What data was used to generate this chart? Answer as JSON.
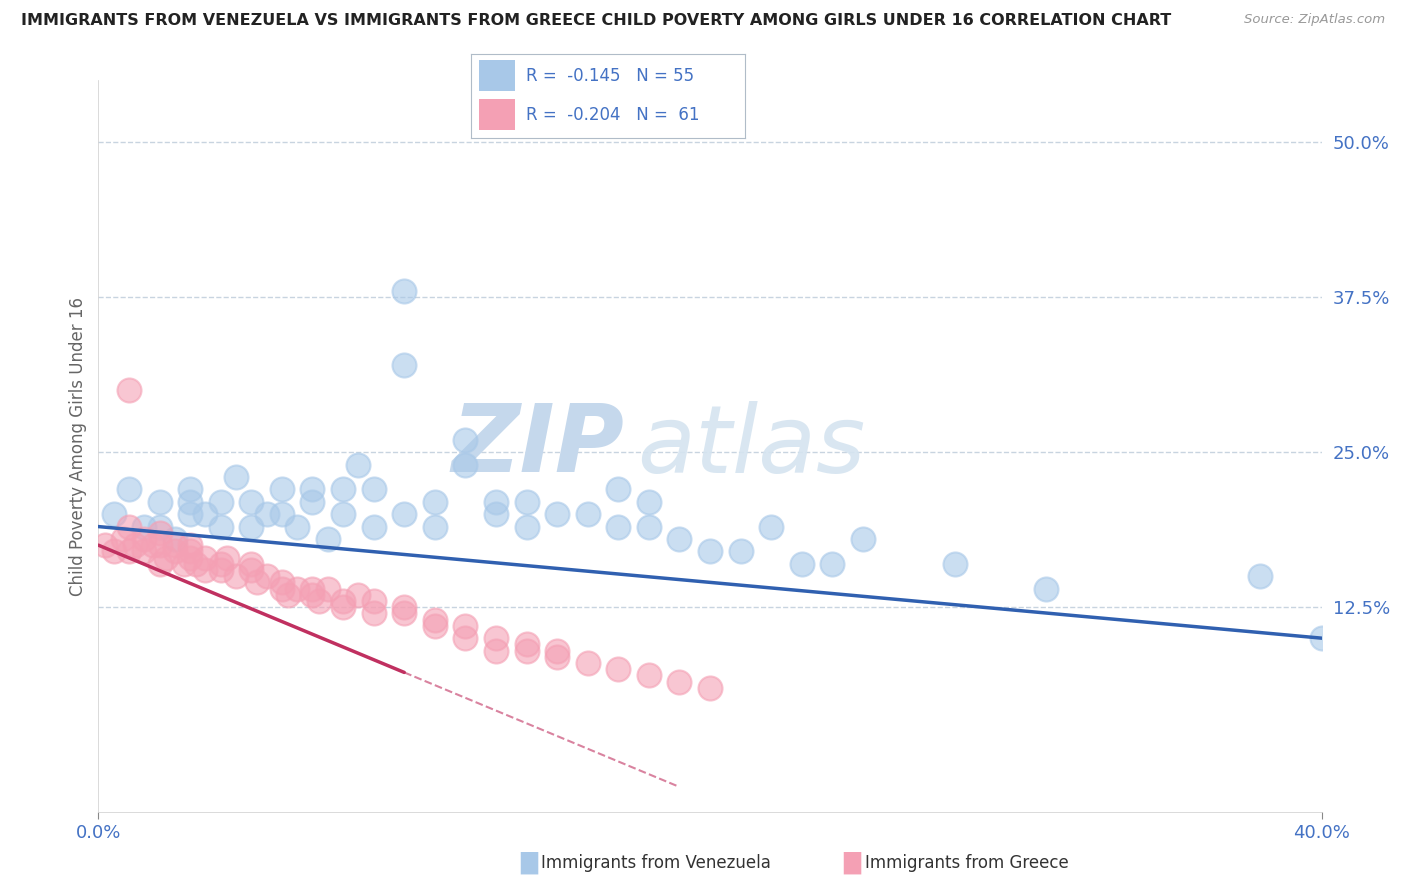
{
  "title": "IMMIGRANTS FROM VENEZUELA VS IMMIGRANTS FROM GREECE CHILD POVERTY AMONG GIRLS UNDER 16 CORRELATION CHART",
  "source": "Source: ZipAtlas.com",
  "ylabel": "Child Poverty Among Girls Under 16",
  "xlim": [
    0.0,
    0.4
  ],
  "ylim": [
    -0.04,
    0.55
  ],
  "ytick_vals": [
    0.125,
    0.25,
    0.375,
    0.5
  ],
  "ytick_labels": [
    "12.5%",
    "25.0%",
    "37.5%",
    "50.0%"
  ],
  "xtick_vals": [
    0.0,
    0.4
  ],
  "xtick_labels": [
    "0.0%",
    "40.0%"
  ],
  "r_venezuela": -0.145,
  "n_venezuela": 55,
  "r_greece": -0.204,
  "n_greece": 61,
  "color_venezuela": "#a8c8e8",
  "color_greece": "#f4a0b4",
  "trendline_venezuela": "#3060b0",
  "trendline_greece": "#c03060",
  "watermark_zip": "ZIP",
  "watermark_atlas": "atlas",
  "watermark_color": "#c8d8ec",
  "background_color": "#ffffff",
  "grid_color": "#c8d4e0",
  "title_color": "#222222",
  "tick_color": "#4472c4",
  "label_color": "#4472c4",
  "legend_label_venezuela": "Immigrants from Venezuela",
  "legend_label_greece": "Immigrants from Greece",
  "venezuela_scatter_x": [
    0.005,
    0.01,
    0.015,
    0.02,
    0.02,
    0.025,
    0.03,
    0.03,
    0.03,
    0.035,
    0.04,
    0.04,
    0.045,
    0.05,
    0.05,
    0.055,
    0.06,
    0.06,
    0.065,
    0.07,
    0.07,
    0.075,
    0.08,
    0.08,
    0.085,
    0.09,
    0.09,
    0.1,
    0.1,
    0.1,
    0.11,
    0.11,
    0.12,
    0.12,
    0.13,
    0.13,
    0.14,
    0.14,
    0.15,
    0.16,
    0.17,
    0.17,
    0.18,
    0.18,
    0.19,
    0.2,
    0.21,
    0.22,
    0.23,
    0.24,
    0.25,
    0.28,
    0.31,
    0.38,
    0.4
  ],
  "venezuela_scatter_y": [
    0.2,
    0.22,
    0.19,
    0.19,
    0.21,
    0.18,
    0.2,
    0.22,
    0.21,
    0.2,
    0.19,
    0.21,
    0.23,
    0.19,
    0.21,
    0.2,
    0.22,
    0.2,
    0.19,
    0.22,
    0.21,
    0.18,
    0.2,
    0.22,
    0.24,
    0.19,
    0.22,
    0.38,
    0.2,
    0.32,
    0.21,
    0.19,
    0.24,
    0.26,
    0.2,
    0.21,
    0.21,
    0.19,
    0.2,
    0.2,
    0.22,
    0.19,
    0.19,
    0.21,
    0.18,
    0.17,
    0.17,
    0.19,
    0.16,
    0.16,
    0.18,
    0.16,
    0.14,
    0.15,
    0.1
  ],
  "greece_scatter_x": [
    0.002,
    0.005,
    0.008,
    0.01,
    0.01,
    0.012,
    0.015,
    0.015,
    0.018,
    0.02,
    0.02,
    0.022,
    0.025,
    0.025,
    0.028,
    0.03,
    0.03,
    0.032,
    0.035,
    0.035,
    0.04,
    0.04,
    0.042,
    0.045,
    0.05,
    0.05,
    0.052,
    0.055,
    0.06,
    0.06,
    0.062,
    0.065,
    0.07,
    0.07,
    0.072,
    0.075,
    0.08,
    0.08,
    0.085,
    0.09,
    0.09,
    0.1,
    0.1,
    0.11,
    0.11,
    0.12,
    0.12,
    0.13,
    0.13,
    0.14,
    0.14,
    0.15,
    0.15,
    0.16,
    0.17,
    0.18,
    0.19,
    0.2,
    0.01,
    0.02,
    0.03
  ],
  "greece_scatter_y": [
    0.175,
    0.17,
    0.18,
    0.17,
    0.19,
    0.175,
    0.17,
    0.18,
    0.175,
    0.16,
    0.175,
    0.165,
    0.17,
    0.175,
    0.16,
    0.165,
    0.17,
    0.16,
    0.165,
    0.155,
    0.16,
    0.155,
    0.165,
    0.15,
    0.155,
    0.16,
    0.145,
    0.15,
    0.14,
    0.145,
    0.135,
    0.14,
    0.14,
    0.135,
    0.13,
    0.14,
    0.13,
    0.125,
    0.135,
    0.12,
    0.13,
    0.12,
    0.125,
    0.11,
    0.115,
    0.11,
    0.1,
    0.1,
    0.09,
    0.09,
    0.095,
    0.085,
    0.09,
    0.08,
    0.075,
    0.07,
    0.065,
    0.06,
    0.3,
    0.185,
    0.175
  ],
  "trendline_ven_x0": 0.0,
  "trendline_ven_x1": 0.4,
  "trendline_ven_y0": 0.19,
  "trendline_ven_y1": 0.1,
  "trendline_gre_x0": 0.0,
  "trendline_gre_x1": 0.19,
  "trendline_gre_y0": 0.175,
  "trendline_gre_y1": -0.02
}
